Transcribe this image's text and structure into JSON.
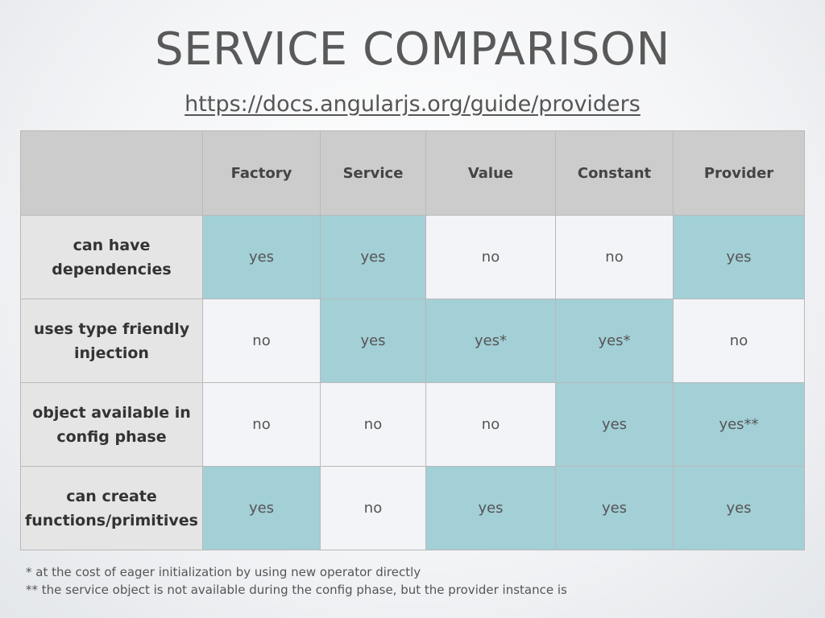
{
  "slide": {
    "title": "SERVICE COMPARISON",
    "link": "https://docs.angularjs.org/guide/providers"
  },
  "table": {
    "corner": "",
    "columns": [
      "Factory",
      "Service",
      "Value",
      "Constant",
      "Provider"
    ],
    "rows": [
      {
        "label": "can have dependencies",
        "cells": [
          "yes",
          "yes",
          "no",
          "no",
          "yes"
        ],
        "highlight": [
          true,
          true,
          false,
          false,
          true
        ]
      },
      {
        "label": "uses type friendly injection",
        "cells": [
          "no",
          "yes",
          "yes*",
          "yes*",
          "no"
        ],
        "highlight": [
          false,
          true,
          true,
          true,
          false
        ]
      },
      {
        "label": "object available in config phase",
        "cells": [
          "no",
          "no",
          "no",
          "yes",
          "yes**"
        ],
        "highlight": [
          false,
          false,
          false,
          true,
          true
        ]
      },
      {
        "label": "can create functions/primitives",
        "cells": [
          "yes",
          "no",
          "yes",
          "yes",
          "yes"
        ],
        "highlight": [
          true,
          false,
          true,
          true,
          true
        ]
      }
    ]
  },
  "footnotes": [
    "* at the cost of eager initialization by using new operator directly",
    "** the service object is not available during the config phase, but the provider instance is"
  ],
  "colors": {
    "highlight": "#a3cfd6",
    "plain": "#f3f4f7",
    "header": "#cccccc",
    "rowhead": "#e5e5e5"
  }
}
